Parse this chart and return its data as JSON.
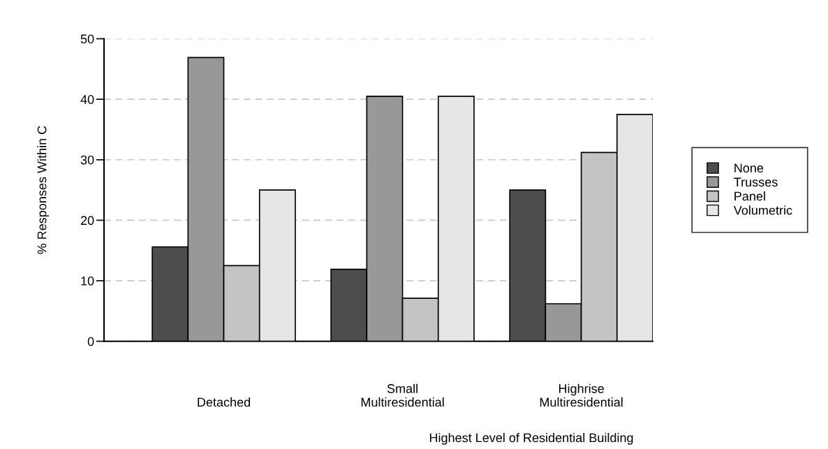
{
  "chart_data": {
    "type": "bar",
    "xlabel": "Highest Level of Residential Building",
    "ylabel": "% Responses Within C",
    "categories": [
      "Detached",
      "Small\nMultiresidential",
      "Highrise\nMultiresidential"
    ],
    "series": [
      {
        "name": "None",
        "color": "#4d4d4d",
        "values": [
          15.6,
          11.9,
          25
        ]
      },
      {
        "name": "Trusses",
        "color": "#989898",
        "values": [
          46.9,
          40.5,
          6.2
        ]
      },
      {
        "name": "Panel",
        "color": "#c4c4c4",
        "values": [
          12.5,
          7.1,
          31.2
        ]
      },
      {
        "name": "Volumetric",
        "color": "#e6e6e6",
        "values": [
          25,
          40.5,
          37.5
        ]
      }
    ],
    "ylim": [
      0,
      50
    ],
    "yticks": [
      0,
      10,
      20,
      30,
      40,
      50
    ],
    "grid": "y",
    "legend": "right"
  }
}
